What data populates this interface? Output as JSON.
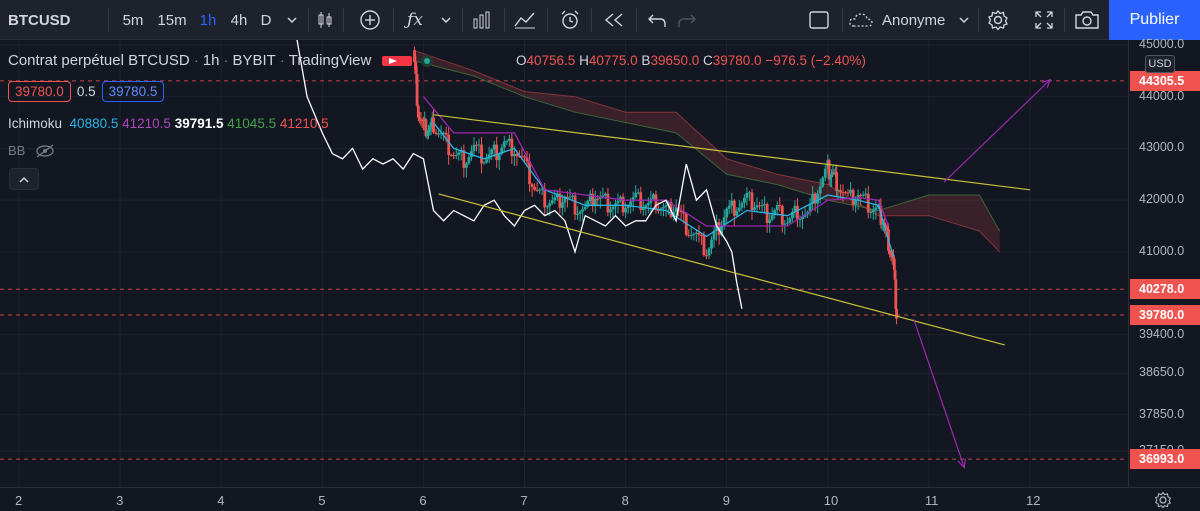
{
  "toolbar": {
    "symbol": "BTCUSD",
    "intervals": [
      "5m",
      "15m",
      "1h",
      "4h",
      "D"
    ],
    "active_interval": "1h",
    "layout_name": "Anonyme",
    "publish_label": "Publier",
    "icons": [
      "chevron-down-icon",
      "candles-icon",
      "add-icon",
      "fx-icon",
      "bars-icon",
      "compare-icon",
      "alert-icon",
      "replay-icon",
      "undo-icon",
      "redo-icon",
      "select-icon",
      "cloud-icon",
      "settings-icon",
      "fullscreen-icon",
      "camera-icon"
    ]
  },
  "legend": {
    "title": "Contrat perpétuel BTCUSD",
    "interval": "1h",
    "exchange": "BYBIT",
    "source": "TradingView",
    "o_label": "O",
    "o": "40756.5",
    "h_label": "H",
    "h": "40775.0",
    "b_label": "B",
    "b": "39650.0",
    "c_label": "C",
    "c": "39780.0",
    "change": "−976.5 (−2.40%)",
    "bid": "39780.0",
    "spread": "0.5",
    "ask": "39780.5",
    "ichimoku_label": "Ichimoku",
    "ichimoku_values": [
      "40880.5",
      "41210.5",
      "39791.5",
      "41045.5",
      "41210.5"
    ],
    "bb_label": "BB"
  },
  "price_axis": {
    "currency": "USD",
    "labels": [
      "45000.0",
      "44000.0",
      "43000.0",
      "42000.0",
      "41000.0",
      "39400.0",
      "38650.0",
      "37850.0",
      "37150.0"
    ],
    "tags": [
      {
        "value": "44305.5",
        "color": "#ef5350"
      },
      {
        "value": "40278.0",
        "color": "#ef5350"
      },
      {
        "value": "39780.0",
        "color": "#ef5350"
      },
      {
        "value": "36993.0",
        "color": "#ef5350"
      }
    ]
  },
  "time_axis": {
    "labels": [
      "2",
      "3",
      "4",
      "5",
      "6",
      "7",
      "8",
      "9",
      "10",
      "11",
      "12"
    ]
  },
  "colors": {
    "background": "#131722",
    "up": "#26a69a",
    "down": "#ef5350",
    "accent": "#2962ff",
    "ichimoku_conversion": "#2196f3",
    "ichimoku_base": "#9c27b0",
    "ichimoku_lagging": "#ffffff",
    "ichimoku_span_a": "#43a047",
    "ichimoku_span_b": "#ef5350",
    "trendline": "#c9c23a",
    "projection": "#9c27b0"
  },
  "chart_data": {
    "type": "candlestick",
    "title": "Contrat perpétuel BTCUSD",
    "interval": "1h",
    "ylim": [
      36700,
      45100
    ],
    "x_ticks": [
      "2",
      "3",
      "4",
      "5",
      "6",
      "7",
      "8",
      "9",
      "10",
      "11",
      "12"
    ],
    "horizontal_levels": [
      44305.5,
      40278.0,
      39780.0,
      36993.0
    ],
    "trendlines": [
      {
        "from": [
          6.1,
          43650
        ],
        "to": [
          12.0,
          42200
        ],
        "color": "#c9c23a"
      },
      {
        "from": [
          6.15,
          42120
        ],
        "to": [
          11.75,
          39200
        ],
        "color": "#c9c23a"
      }
    ],
    "projections": [
      {
        "points": [
          [
            11.15,
            42350
          ],
          [
            12.2,
            44330
          ]
        ],
        "color": "#9c27b0"
      },
      {
        "points": [
          [
            10.85,
            39700
          ],
          [
            11.35,
            36830
          ]
        ],
        "color": "#9c27b0"
      }
    ],
    "close_path": [
      [
        5.9,
        44900
      ],
      [
        5.95,
        43700
      ],
      [
        6.0,
        43400
      ],
      [
        6.05,
        43350
      ],
      [
        6.1,
        43450
      ],
      [
        6.2,
        43200
      ],
      [
        6.3,
        42900
      ],
      [
        6.4,
        42800
      ],
      [
        6.5,
        43000
      ],
      [
        6.6,
        42800
      ],
      [
        6.7,
        42900
      ],
      [
        6.8,
        43100
      ],
      [
        6.9,
        43000
      ],
      [
        7.0,
        42700
      ],
      [
        7.1,
        42200
      ],
      [
        7.2,
        42000
      ],
      [
        7.3,
        41950
      ],
      [
        7.4,
        42100
      ],
      [
        7.5,
        41900
      ],
      [
        7.6,
        41800
      ],
      [
        7.7,
        42100
      ],
      [
        7.8,
        41950
      ],
      [
        7.9,
        41900
      ],
      [
        8.0,
        41950
      ],
      [
        8.1,
        42000
      ],
      [
        8.2,
        41900
      ],
      [
        8.3,
        41950
      ],
      [
        8.4,
        41800
      ],
      [
        8.5,
        41900
      ],
      [
        8.6,
        41500
      ],
      [
        8.7,
        41300
      ],
      [
        8.8,
        41000
      ],
      [
        8.9,
        41400
      ],
      [
        9.0,
        41800
      ],
      [
        9.1,
        41900
      ],
      [
        9.2,
        42000
      ],
      [
        9.3,
        41900
      ],
      [
        9.4,
        41700
      ],
      [
        9.5,
        41800
      ],
      [
        9.6,
        41600
      ],
      [
        9.7,
        41800
      ],
      [
        9.8,
        41700
      ],
      [
        9.9,
        42200
      ],
      [
        10.0,
        42600
      ],
      [
        10.05,
        42500
      ],
      [
        10.1,
        42300
      ],
      [
        10.2,
        42000
      ],
      [
        10.3,
        42100
      ],
      [
        10.4,
        41900
      ],
      [
        10.5,
        41800
      ],
      [
        10.55,
        41600
      ],
      [
        10.6,
        41200
      ],
      [
        10.65,
        40800
      ],
      [
        10.68,
        39780
      ]
    ],
    "series": [
      {
        "name": "Ichimoku conversion",
        "values": [
          [
            6.1,
            43500
          ],
          [
            6.3,
            43000
          ],
          [
            6.6,
            42800
          ],
          [
            6.9,
            43000
          ],
          [
            7.2,
            42200
          ],
          [
            7.6,
            41900
          ],
          [
            8.0,
            41900
          ],
          [
            8.4,
            41800
          ],
          [
            8.8,
            41300
          ],
          [
            9.2,
            41800
          ],
          [
            9.6,
            41700
          ],
          [
            10.0,
            42100
          ],
          [
            10.3,
            42000
          ],
          [
            10.5,
            41900
          ],
          [
            10.65,
            40900
          ]
        ]
      },
      {
        "name": "Ichimoku base",
        "values": [
          [
            6.0,
            44000
          ],
          [
            6.3,
            43300
          ],
          [
            6.6,
            43300
          ],
          [
            6.9,
            43300
          ],
          [
            7.2,
            42200
          ],
          [
            7.6,
            42100
          ],
          [
            8.0,
            42000
          ],
          [
            8.4,
            42000
          ],
          [
            8.8,
            41500
          ],
          [
            9.2,
            41500
          ],
          [
            9.6,
            41500
          ],
          [
            10.0,
            42000
          ],
          [
            10.3,
            42050
          ],
          [
            10.5,
            42000
          ],
          [
            10.6,
            41500
          ]
        ]
      },
      {
        "name": "Ichimoku lagging",
        "values": [
          [
            4.75,
            45100
          ],
          [
            4.85,
            44000
          ],
          [
            5.0,
            43300
          ],
          [
            5.1,
            42900
          ],
          [
            5.2,
            42800
          ],
          [
            5.3,
            43000
          ],
          [
            5.4,
            42600
          ],
          [
            5.5,
            42800
          ],
          [
            5.6,
            42700
          ],
          [
            5.7,
            42800
          ],
          [
            5.8,
            42600
          ],
          [
            5.9,
            42900
          ],
          [
            6.0,
            42800
          ],
          [
            6.1,
            41800
          ],
          [
            6.2,
            41600
          ],
          [
            6.3,
            41800
          ],
          [
            6.4,
            41700
          ],
          [
            6.5,
            41600
          ],
          [
            6.6,
            41900
          ],
          [
            6.7,
            42000
          ],
          [
            6.8,
            41700
          ],
          [
            6.9,
            41500
          ],
          [
            7.0,
            41800
          ],
          [
            7.1,
            41900
          ],
          [
            7.2,
            41700
          ],
          [
            7.3,
            41800
          ],
          [
            7.4,
            41600
          ],
          [
            7.5,
            41000
          ],
          [
            7.6,
            41700
          ],
          [
            7.7,
            41600
          ],
          [
            7.8,
            41500
          ],
          [
            7.9,
            41700
          ],
          [
            8.0,
            41500
          ],
          [
            8.1,
            41600
          ],
          [
            8.2,
            41600
          ],
          [
            8.3,
            41900
          ],
          [
            8.4,
            42000
          ],
          [
            8.5,
            41600
          ],
          [
            8.6,
            42700
          ],
          [
            8.7,
            42000
          ],
          [
            8.8,
            42200
          ],
          [
            8.9,
            41500
          ],
          [
            9.0,
            41200
          ],
          [
            9.05,
            41000
          ],
          [
            9.1,
            40400
          ],
          [
            9.15,
            39900
          ]
        ]
      },
      {
        "name": "Ichimoku span A",
        "values": [
          [
            5.9,
            44700
          ],
          [
            6.5,
            44400
          ],
          [
            7.0,
            44000
          ],
          [
            7.5,
            43700
          ],
          [
            8.0,
            43500
          ],
          [
            8.5,
            43300
          ],
          [
            9.0,
            42500
          ],
          [
            9.5,
            42300
          ],
          [
            10.0,
            42000
          ],
          [
            10.5,
            41800
          ],
          [
            11.0,
            42100
          ],
          [
            11.5,
            42100
          ],
          [
            11.7,
            41400
          ]
        ]
      },
      {
        "name": "Ichimoku span B",
        "values": [
          [
            5.9,
            44900
          ],
          [
            6.5,
            44500
          ],
          [
            7.0,
            44100
          ],
          [
            7.5,
            44000
          ],
          [
            8.0,
            43700
          ],
          [
            8.5,
            43700
          ],
          [
            9.0,
            42800
          ],
          [
            9.5,
            42500
          ],
          [
            10.0,
            42300
          ],
          [
            10.5,
            41700
          ],
          [
            11.0,
            41700
          ],
          [
            11.5,
            41400
          ],
          [
            11.7,
            41000
          ]
        ]
      }
    ]
  }
}
